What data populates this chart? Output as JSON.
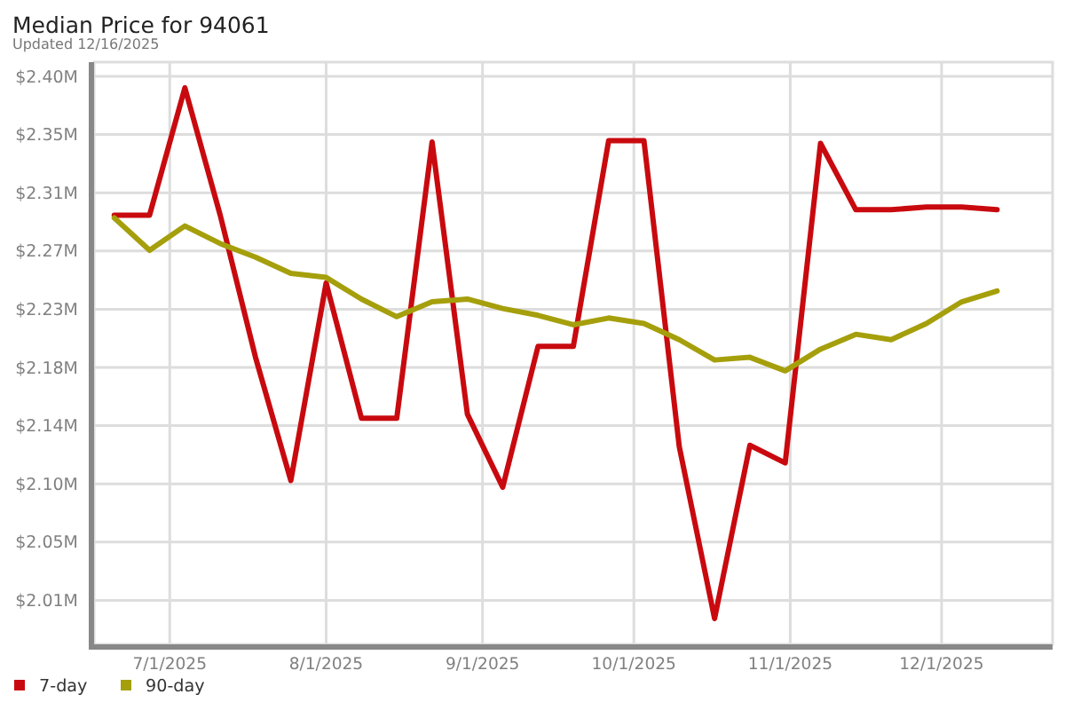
{
  "chart_data": {
    "type": "line",
    "title": "Median Price for 94061",
    "subtitle": "Updated 12/16/2025",
    "x": [
      "2025-06-20",
      "2025-06-27",
      "2025-07-04",
      "2025-07-11",
      "2025-07-18",
      "2025-07-25",
      "2025-08-01",
      "2025-08-08",
      "2025-08-15",
      "2025-08-22",
      "2025-08-29",
      "2025-09-05",
      "2025-09-12",
      "2025-09-19",
      "2025-09-26",
      "2025-10-03",
      "2025-10-10",
      "2025-10-17",
      "2025-10-24",
      "2025-10-31",
      "2025-11-07",
      "2025-11-14",
      "2025-11-21",
      "2025-11-28",
      "2025-12-05",
      "2025-12-12"
    ],
    "series": [
      {
        "name": "7-day",
        "color": "#c80a0f",
        "values": [
          2.295,
          2.295,
          2.389,
          2.295,
          2.19,
          2.099,
          2.245,
          2.145,
          2.145,
          2.349,
          2.148,
          2.094,
          2.198,
          2.198,
          2.35,
          2.35,
          2.124,
          1.997,
          2.125,
          2.112,
          2.348,
          2.299,
          2.299,
          2.301,
          2.301,
          2.299
        ]
      },
      {
        "name": "90-day",
        "color": "#a59f0c",
        "values": [
          2.293,
          2.269,
          2.287,
          2.274,
          2.264,
          2.252,
          2.249,
          2.233,
          2.22,
          2.231,
          2.233,
          2.226,
          2.221,
          2.214,
          2.219,
          2.215,
          2.203,
          2.188,
          2.19,
          2.18,
          2.196,
          2.207,
          2.203,
          2.215,
          2.231,
          2.239
        ]
      }
    ],
    "xlim": [
      "2025-06-16",
      "2025-12-23"
    ],
    "xticks": [
      {
        "value": "2025-07-01",
        "label": "7/1/2025"
      },
      {
        "value": "2025-08-01",
        "label": "8/1/2025"
      },
      {
        "value": "2025-09-01",
        "label": "9/1/2025"
      },
      {
        "value": "2025-10-01",
        "label": "10/1/2025"
      },
      {
        "value": "2025-11-01",
        "label": "11/1/2025"
      },
      {
        "value": "2025-12-01",
        "label": "12/1/2025"
      }
    ],
    "ylim": [
      1.978,
      2.408
    ],
    "yticks": [
      {
        "value": 2.0105,
        "label": "$2.01M"
      },
      {
        "value": 2.0535,
        "label": "$2.05M"
      },
      {
        "value": 2.0965,
        "label": "$2.10M"
      },
      {
        "value": 2.1395,
        "label": "$2.14M"
      },
      {
        "value": 2.1825,
        "label": "$2.18M"
      },
      {
        "value": 2.2255,
        "label": "$2.23M"
      },
      {
        "value": 2.2685,
        "label": "$2.27M"
      },
      {
        "value": 2.3115,
        "label": "$2.31M"
      },
      {
        "value": 2.3545,
        "label": "$2.35M"
      },
      {
        "value": 2.3975,
        "label": "$2.40M"
      }
    ],
    "grid": true,
    "legend": "bottom left"
  }
}
